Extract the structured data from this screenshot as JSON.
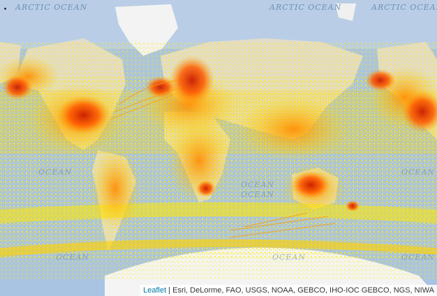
{
  "map": {
    "ocean_labels": [
      {
        "text": "ARCTIC OCEAN"
      },
      {
        "text": "ARCTIC OCEAN"
      },
      {
        "text": "ARCTIC OCEAN"
      },
      {
        "text": "OCEAN"
      },
      {
        "text": "OCEAN"
      },
      {
        "text": "OCEAN"
      },
      {
        "text": "OCEAN"
      },
      {
        "text": "OCEAN"
      },
      {
        "text": "OCEAN"
      },
      {
        "text": "OCEAN"
      }
    ],
    "colors": {
      "ocean": "#a9c3e2",
      "land": "#e6e0cf",
      "ice": "#f4f4f4",
      "density_low": "#ffee00",
      "density_mid": "#ffaa00",
      "density_high": "#ff5a00",
      "density_peak": "#d91c00"
    }
  },
  "attribution": {
    "link": "Leaflet",
    "separator": " | ",
    "text": "Esri, DeLorme, FAO, USGS, NOAA, GEBCO, IHO-IOC GEBCO, NGS, NIWA"
  }
}
